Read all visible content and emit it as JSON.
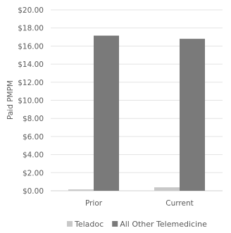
{
  "chart_data": {
    "type": "bar",
    "title": "",
    "xlabel": "",
    "ylabel": "Paid PMPM",
    "categories": [
      "Prior",
      "Current"
    ],
    "series": [
      {
        "name": "Teladoc",
        "values": [
          0.15,
          0.38
        ],
        "color": "#c8c8c8"
      },
      {
        "name": "All Other Telemedicine",
        "values": [
          17.15,
          16.8
        ],
        "color": "#7a7a7a"
      }
    ],
    "ylim": [
      0,
      20
    ],
    "y_ticks": [
      0,
      2,
      4,
      6,
      8,
      10,
      12,
      14,
      16,
      18,
      20
    ],
    "y_tick_labels": [
      "$0.00",
      "$2.00",
      "$4.00",
      "$6.00",
      "$8.00",
      "$10.00",
      "$12.00",
      "$14.00",
      "$16.00",
      "$18.00",
      "$20.00"
    ],
    "grid": true,
    "legend_position": "bottom"
  }
}
